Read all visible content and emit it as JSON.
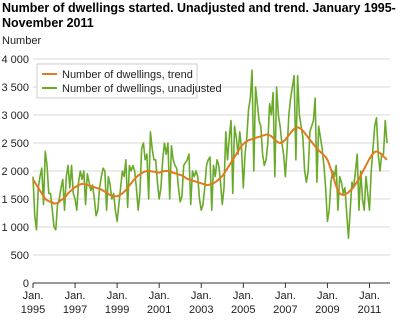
{
  "chart_data": {
    "type": "line",
    "title": [
      "Number of dwellings started. Unadjusted and trend. January 1995-",
      "November 2011"
    ],
    "y_label": "Number",
    "categories": [
      "Jan. 1995",
      null,
      null,
      null,
      null,
      null,
      null,
      null,
      null,
      null,
      null,
      null,
      null,
      null,
      null,
      null,
      null,
      null,
      null,
      null,
      null,
      null,
      null,
      null,
      "Jan. 1997",
      null,
      null,
      null,
      null,
      null,
      null,
      null,
      null,
      null,
      null,
      null,
      null,
      null,
      null,
      null,
      null,
      null,
      null,
      null,
      null,
      null,
      null,
      null,
      "Jan. 1999",
      null,
      null,
      null,
      null,
      null,
      null,
      null,
      null,
      null,
      null,
      null,
      null,
      null,
      null,
      null,
      null,
      null,
      null,
      null,
      null,
      null,
      null,
      null,
      "Jan. 2001",
      null,
      null,
      null,
      null,
      null,
      null,
      null,
      null,
      null,
      null,
      null,
      null,
      null,
      null,
      null,
      null,
      null,
      null,
      null,
      null,
      null,
      null,
      null,
      "Jan. 2003",
      null,
      null,
      null,
      null,
      null,
      null,
      null,
      null,
      null,
      null,
      null,
      null,
      null,
      null,
      null,
      null,
      null,
      null,
      null,
      null,
      null,
      null,
      null,
      "Jan. 2005",
      null,
      null,
      null,
      null,
      null,
      null,
      null,
      null,
      null,
      null,
      null,
      null,
      null,
      null,
      null,
      null,
      null,
      null,
      null,
      null,
      null,
      null,
      null,
      "Jan. 2007",
      null,
      null,
      null,
      null,
      null,
      null,
      null,
      null,
      null,
      null,
      null,
      null,
      null,
      null,
      null,
      null,
      null,
      null,
      null,
      null,
      null,
      null,
      null,
      "Jan. 2009",
      null,
      null,
      null,
      null,
      null,
      null,
      null,
      null,
      null,
      null,
      null,
      null,
      null,
      null,
      null,
      null,
      null,
      null,
      null,
      null,
      null,
      null,
      null,
      "Jan. 2011",
      null,
      null,
      null,
      null,
      null,
      null,
      null,
      null,
      null,
      null
    ],
    "series": [
      {
        "name": "Number of dwellings, trend",
        "color": "#e07b1e",
        "values": [
          1850,
          1800,
          1750,
          1700,
          1650,
          1600,
          1550,
          1500,
          1480,
          1460,
          1450,
          1440,
          1420,
          1420,
          1430,
          1450,
          1480,
          1500,
          1530,
          1560,
          1600,
          1630,
          1660,
          1690,
          1710,
          1730,
          1750,
          1760,
          1770,
          1770,
          1760,
          1750,
          1740,
          1730,
          1720,
          1710,
          1700,
          1690,
          1680,
          1670,
          1650,
          1630,
          1610,
          1590,
          1570,
          1560,
          1550,
          1550,
          1550,
          1560,
          1580,
          1600,
          1630,
          1660,
          1700,
          1740,
          1780,
          1820,
          1860,
          1890,
          1920,
          1940,
          1960,
          1980,
          1990,
          2000,
          2000,
          2000,
          1990,
          1990,
          1980,
          1970,
          1970,
          1980,
          1990,
          2000,
          2000,
          2000,
          1990,
          1980,
          1970,
          1960,
          1950,
          1940,
          1930,
          1920,
          1900,
          1880,
          1860,
          1850,
          1840,
          1830,
          1820,
          1810,
          1800,
          1790,
          1780,
          1770,
          1760,
          1750,
          1750,
          1760,
          1770,
          1780,
          1800,
          1820,
          1850,
          1880,
          1910,
          1950,
          2000,
          2050,
          2100,
          2150,
          2200,
          2250,
          2300,
          2350,
          2400,
          2450,
          2480,
          2510,
          2530,
          2550,
          2560,
          2570,
          2580,
          2590,
          2600,
          2610,
          2620,
          2630,
          2640,
          2650,
          2650,
          2640,
          2620,
          2590,
          2560,
          2530,
          2510,
          2500,
          2510,
          2530,
          2560,
          2600,
          2640,
          2680,
          2720,
          2750,
          2770,
          2780,
          2770,
          2750,
          2720,
          2680,
          2640,
          2600,
          2560,
          2520,
          2480,
          2440,
          2400,
          2370,
          2340,
          2310,
          2280,
          2250,
          2200,
          2120,
          2030,
          1930,
          1830,
          1730,
          1650,
          1600,
          1580,
          1570,
          1580,
          1600,
          1620,
          1650,
          1680,
          1720,
          1760,
          1810,
          1860,
          1920,
          1980,
          2040,
          2100,
          2160,
          2220,
          2270,
          2310,
          2340,
          2350,
          2340,
          2320,
          2290,
          2260,
          2230,
          2200
        ]
      },
      {
        "name": "Number of dwellings, unadjusted",
        "color": "#6aaa2a",
        "values": [
          1900,
          1200,
          950,
          1700,
          1900,
          2050,
          1400,
          2350,
          2100,
          1600,
          1600,
          1300,
          1000,
          950,
          1400,
          1500,
          1700,
          1850,
          1300,
          1900,
          2100,
          1700,
          2100,
          1600,
          1500,
          1300,
          1800,
          2000,
          1850,
          2000,
          1400,
          1950,
          1800,
          1650,
          1750,
          1500,
          1200,
          1300,
          1700,
          1900,
          2050,
          2000,
          1300,
          1900,
          1750,
          1500,
          1600,
          1300,
          1100,
          1400,
          1700,
          2000,
          1900,
          2200,
          1350,
          2100,
          2000,
          2100,
          2000,
          1700,
          1300,
          1600,
          2400,
          2500,
          2200,
          2300,
          1500,
          2700,
          2400,
          2200,
          2200,
          1800,
          1500,
          1700,
          2200,
          2500,
          2300,
          2500,
          1500,
          2450,
          2200,
          2100,
          2050,
          1700,
          1450,
          1550,
          2100,
          2150,
          2200,
          2300,
          1400,
          2000,
          1900,
          2000,
          1900,
          1500,
          1300,
          1400,
          1700,
          2100,
          2200,
          2250,
          1300,
          2100,
          1900,
          2200,
          2100,
          1800,
          1400,
          1700,
          2700,
          2200,
          2600,
          2900,
          1600,
          2800,
          2600,
          2300,
          2700,
          2400,
          1700,
          2300,
          2600,
          3100,
          3300,
          3800,
          2000,
          3500,
          3200,
          2900,
          2800,
          2300,
          2100,
          2200,
          2500,
          3200,
          3000,
          3400,
          1900,
          3500,
          3000,
          2800,
          2500,
          2300,
          1900,
          2400,
          3000,
          3300,
          3500,
          3700,
          2200,
          3700,
          3000,
          2800,
          2600,
          2000,
          1800,
          2000,
          2700,
          2800,
          2900,
          3300,
          1800,
          2800,
          2600,
          2400,
          2100,
          1700,
          1100,
          1300,
          1800,
          2000,
          1900,
          2100,
          1300,
          1900,
          1800,
          1600,
          1700,
          1250,
          800,
          1300,
          1800,
          1700,
          2000,
          2300,
          1300,
          2000,
          1500,
          1300,
          1900,
          1600,
          1300,
          2000,
          2400,
          2800,
          2950,
          2300,
          2000,
          2300,
          2300,
          2900,
          2500
        ]
      }
    ],
    "ylim": [
      0,
      4000
    ],
    "yticks": [
      0,
      500,
      {
        "value": 1000,
        "label": "1 000"
      },
      {
        "value": 1500,
        "label": "1 500"
      },
      {
        "value": 2000,
        "label": "2 000"
      },
      {
        "value": 2500,
        "label": "2 500"
      },
      {
        "value": 3000,
        "label": "3 000"
      },
      {
        "value": 3500,
        "label": "3 500"
      },
      {
        "value": 4000,
        "label": "4 000"
      }
    ],
    "grid": true,
    "legend": "top-left"
  }
}
